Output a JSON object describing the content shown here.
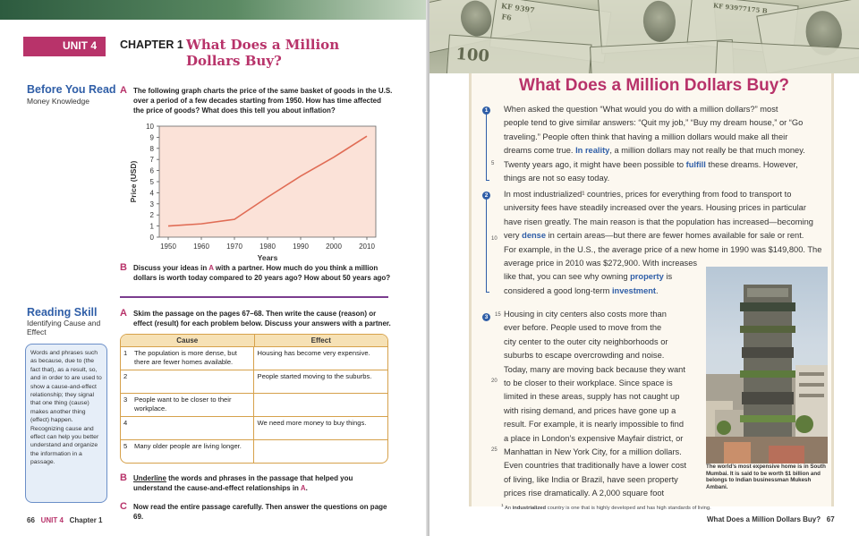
{
  "left": {
    "unit_tab": "UNIT 4",
    "chapter_label": "CHAPTER 1",
    "chapter_title": "What Does a Million Dollars Buy?",
    "before_you_read": {
      "heading": "Before You Read",
      "sub": "Money Knowledge"
    },
    "qA1": {
      "letter": "A",
      "text": "The following graph charts the price of the same basket of goods in the U.S. over a period of a few decades starting from 1950. How has time affected the price of goods? What does this tell you about inflation?"
    },
    "qB1": {
      "letter": "B",
      "prefix": "Discuss your ideas in ",
      "ref": "A",
      "suffix": " with a partner. How much do you think a million dollars is worth today compared to 20 years ago? How about 50 years ago?"
    },
    "reading_skill": {
      "heading": "Reading Skill",
      "sub": "Identifying Cause and Effect"
    },
    "tip": "Words and phrases such as because, due to (the fact that), as a result, so, and in order to are used to show a cause-and-effect relationship; they signal that one thing (cause) makes another thing (effect) happen. Recognizing cause and effect can help you better understand and organize the information in a passage.",
    "qA2": {
      "letter": "A",
      "text": "Skim the passage on the pages 67–68. Then write the cause (reason) or effect (result) for each problem below. Discuss your answers with a partner."
    },
    "table": {
      "headers": [
        "Cause",
        "Effect"
      ],
      "rows": [
        {
          "num": "1",
          "cause": "The population is more dense, but there are fewer homes available.",
          "effect": "Housing has become very expensive."
        },
        {
          "num": "2",
          "cause": "",
          "effect": "People started moving to the suburbs."
        },
        {
          "num": "3",
          "cause": "People want to be closer to their workplace.",
          "effect": ""
        },
        {
          "num": "4",
          "cause": "",
          "effect": "We need more money to buy things."
        },
        {
          "num": "5",
          "cause": "Many older people are living longer.",
          "effect": ""
        }
      ]
    },
    "qB2": {
      "letter": "B",
      "underline": "Underline",
      "prefix": " the words and phrases in the passage that helped you understand the cause-and-effect relationships in ",
      "ref": "A",
      "suffix": "."
    },
    "qC": {
      "letter": "C",
      "text": "Now read the entire passage carefully. Then answer the questions on page 69."
    },
    "footer": {
      "page": "66",
      "unit": "UNIT 4",
      "chapter": "Chapter 1"
    }
  },
  "chart_data": {
    "type": "line",
    "x": [
      1950,
      1960,
      1970,
      1980,
      1990,
      2000,
      2010
    ],
    "series": [
      {
        "values": [
          1.0,
          1.2,
          1.6,
          3.6,
          5.5,
          7.2,
          9.1
        ]
      }
    ],
    "xlabel": "Years",
    "ylabel": "Price (USD)",
    "ylim": [
      0,
      10
    ],
    "yticks": [
      0,
      1,
      2,
      3,
      4,
      5,
      6,
      7,
      8,
      9,
      10
    ],
    "grid": false,
    "line_color": "#e06c55",
    "plot_bg": "#fbe2d8"
  },
  "right": {
    "title": "What Does a Million Dollars Buy?",
    "bill_texts": [
      "KF 9397",
      "F6",
      "KF 93977175 B",
      "100"
    ],
    "p1": {
      "mark": "1",
      "lines": [
        "When asked the question “What would you do with a million dollars?” most",
        "people tend to give similar answers: “Quit my job,” “Buy my dream house,” or “Go",
        "traveling.” People often think that having a million dollars would make all their",
        "dreams come true. [[In reality]], a million dollars may not really be that much money.",
        "Twenty years ago, it might have been possible to [[fulfill]] these dreams. However,",
        "things are not so easy today."
      ],
      "line_num": "5"
    },
    "p2": {
      "mark": "2",
      "lines": [
        "In most industrialized¹ countries, prices for everything from food to transport to",
        "university fees have steadily increased over the years. Housing prices in particular",
        "have risen greatly. The main reason is that the population has increased—becoming",
        "very [[dense]] in certain areas—but there are fewer homes available for sale or rent.",
        "For example, in the U.S., the average price of a new home in 1990 was $149,800. The",
        "average price in 2010 was $272,900. With increases",
        "like that, you can see why owning [[property]] is",
        "considered a good long-term [[investment]]."
      ],
      "line_num": "10"
    },
    "p3": {
      "mark": "3",
      "lines": [
        "Housing in city centers also costs more than",
        "ever before. People used to move from the",
        "city center to the outer city neighborhoods or",
        "suburbs to escape overcrowding and noise.",
        "Today, many are moving back because they want",
        "to be closer to their workplace. Since space is",
        "limited in these areas, supply has not caught up",
        "with rising demand, and prices have gone up a",
        "result. For example, it is nearly impossible to find",
        "a place in London’s expensive Mayfair district, or",
        "Manhattan in New York City, for a million dollars.",
        "Even countries that traditionally have a lower cost",
        "of living, like India or Brazil, have seen property",
        "prices rise dramatically. A 2,000 square foot"
      ],
      "line_nums": [
        "15",
        "20",
        "25"
      ]
    },
    "caption": "The world’s most expensive home is in South Mumbai. It is said to be worth $1 billion and belongs to Indian businessman Mukesh Ambani.",
    "footnote_num": "1",
    "footnote_prefix": " An ",
    "footnote_term": "industrialized",
    "footnote_rest": " country is one that is highly developed and has high standards of living.",
    "footer": {
      "title": "What Does a Million Dollars Buy?",
      "page": "67"
    },
    "colors": {
      "accent": "#b8336a",
      "keyword": "#2f5ea7"
    }
  }
}
